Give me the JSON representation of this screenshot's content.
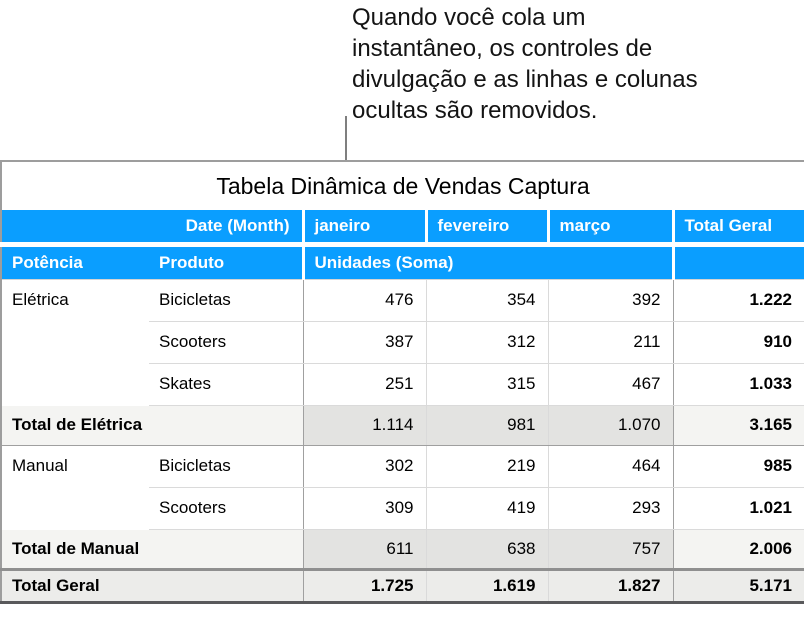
{
  "callout": {
    "lines": [
      "Quando você cola um",
      "instantâneo, os controles de",
      "divulgação e as linhas e colunas",
      "ocultas são removidos."
    ]
  },
  "table": {
    "title": "Tabela Dinâmica de Vendas Captura",
    "header_row1": {
      "date_label": "Date (Month)",
      "months": [
        "janeiro",
        "fevereiro",
        "março"
      ],
      "total_label": "Total Geral"
    },
    "header_row2": {
      "potencia_label": "Potência",
      "produto_label": "Produto",
      "values_label": "Unidades (Soma)",
      "total_placeholder": ""
    },
    "rows": [
      {
        "type": "data",
        "potencia": "Elétrica",
        "produto": "Bicicletas",
        "values": [
          "476",
          "354",
          "392"
        ],
        "total": "1.222"
      },
      {
        "type": "data",
        "potencia": "",
        "produto": "Scooters",
        "values": [
          "387",
          "312",
          "211"
        ],
        "total": "910"
      },
      {
        "type": "data",
        "potencia": "",
        "produto": "Skates",
        "values": [
          "251",
          "315",
          "467"
        ],
        "total": "1.033"
      },
      {
        "type": "subtotal",
        "label": "Total de Elétrica",
        "values": [
          "1.114",
          "981",
          "1.070"
        ],
        "total": "3.165"
      },
      {
        "type": "data",
        "potencia": "Manual",
        "produto": "Bicicletas",
        "values": [
          "302",
          "219",
          "464"
        ],
        "total": "985"
      },
      {
        "type": "data",
        "potencia": "",
        "produto": "Scooters",
        "values": [
          "309",
          "419",
          "293"
        ],
        "total": "1.021"
      },
      {
        "type": "subtotal",
        "label": "Total de Manual",
        "values": [
          "611",
          "638",
          "757"
        ],
        "total": "2.006"
      },
      {
        "type": "grandtotal",
        "label": "Total Geral",
        "values": [
          "1.725",
          "1.619",
          "1.827"
        ],
        "total": "5.171"
      }
    ]
  },
  "colors": {
    "header_bg": "#0a9eff",
    "subtotal_label_bg": "#f4f4f2",
    "subtotal_value_bg": "#e3e3e1",
    "grandtotal_bg": "#ececea",
    "bottom_border": "#59595b"
  }
}
